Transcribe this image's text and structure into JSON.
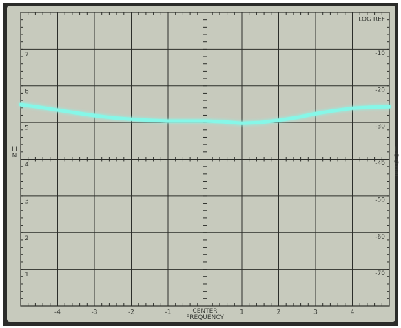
{
  "chart_data": {
    "type": "line",
    "x": [
      -5,
      -4.5,
      -4,
      -3.5,
      -3,
      -2.5,
      -2,
      -1.5,
      -1,
      -0.5,
      0,
      0.5,
      1,
      1.5,
      2,
      2.5,
      3,
      3.5,
      4,
      4.5,
      5
    ],
    "values": [
      5.49,
      5.42,
      5.34,
      5.26,
      5.19,
      5.13,
      5.09,
      5.06,
      5.04,
      5.04,
      5.04,
      5.02,
      4.98,
      5.0,
      5.06,
      5.14,
      5.24,
      5.32,
      5.39,
      5.42,
      5.43
    ],
    "color": "#86f7e8",
    "xlim": [
      -5,
      5
    ],
    "xticks": [
      -4,
      -3,
      -2,
      -1,
      {
        "value": 0,
        "label": "CENTER FREQUENCY"
      },
      1,
      2,
      3,
      4
    ],
    "ylim": [
      0,
      8
    ],
    "yticks": [
      1,
      2,
      3,
      4,
      5,
      6,
      7
    ],
    "y2lim": [
      -80,
      0
    ],
    "y2ticks": [
      -70,
      -60,
      -50,
      -40,
      -30,
      -20,
      -10,
      {
        "value": 0,
        "label": "LOG REF"
      }
    ],
    "ylabel": "LIN",
    "y2label": "LOG dB",
    "grid": true
  }
}
